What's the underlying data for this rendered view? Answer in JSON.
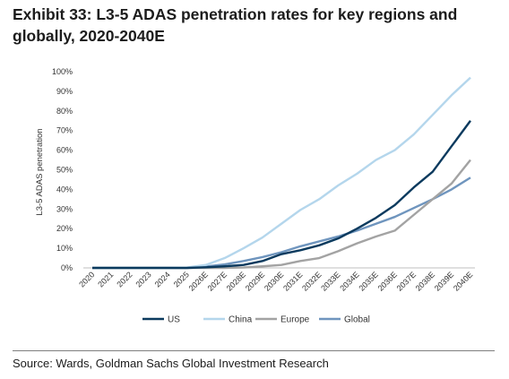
{
  "title": "Exhibit 33: L3-5 ADAS penetration rates for key regions and globally, 2020-2040E",
  "source": "Source: Wards, Goldman Sachs Global Investment Research",
  "chart_data": {
    "type": "line",
    "title": "",
    "xlabel": "",
    "ylabel": "L3-5 ADAS penetration",
    "ylim": [
      0,
      100
    ],
    "yticks": [
      "0%",
      "10%",
      "20%",
      "30%",
      "40%",
      "50%",
      "60%",
      "70%",
      "80%",
      "90%",
      "100%"
    ],
    "grid": false,
    "legend": "bottom",
    "categories": [
      "2020",
      "2021",
      "2022",
      "2023",
      "2024",
      "2025",
      "2026E",
      "2027E",
      "2028E",
      "2029E",
      "2030E",
      "2031E",
      "2032E",
      "2033E",
      "2034E",
      "2035E",
      "2036E",
      "2037E",
      "2038E",
      "2039E",
      "2040E"
    ],
    "series": [
      {
        "name": "US",
        "color": "#0b3a5e",
        "values": [
          0,
          0,
          0,
          0,
          0,
          0,
          0.3,
          0.8,
          1.5,
          3.5,
          7,
          9,
          11.5,
          15,
          20,
          25.5,
          32,
          41,
          49,
          62,
          75
        ]
      },
      {
        "name": "China",
        "color": "#b4d6ec",
        "values": [
          0,
          0,
          0,
          0,
          0,
          0.2,
          1.5,
          5,
          10,
          15.5,
          22.5,
          29.5,
          35,
          42,
          48,
          55,
          60,
          68,
          78,
          88,
          97
        ]
      },
      {
        "name": "Europe",
        "color": "#a3a3a3",
        "values": [
          0,
          0,
          0,
          0,
          0,
          0,
          0,
          0,
          0.2,
          0.8,
          1.5,
          3.5,
          5,
          8.5,
          12.5,
          16,
          19,
          27,
          35,
          43,
          55
        ]
      },
      {
        "name": "Global",
        "color": "#6f95be",
        "values": [
          0,
          0,
          0,
          0,
          0,
          0,
          0.7,
          1.8,
          3.5,
          5.5,
          8,
          11,
          13.5,
          16,
          19,
          22.5,
          26,
          30.5,
          35,
          40,
          46
        ]
      }
    ]
  }
}
